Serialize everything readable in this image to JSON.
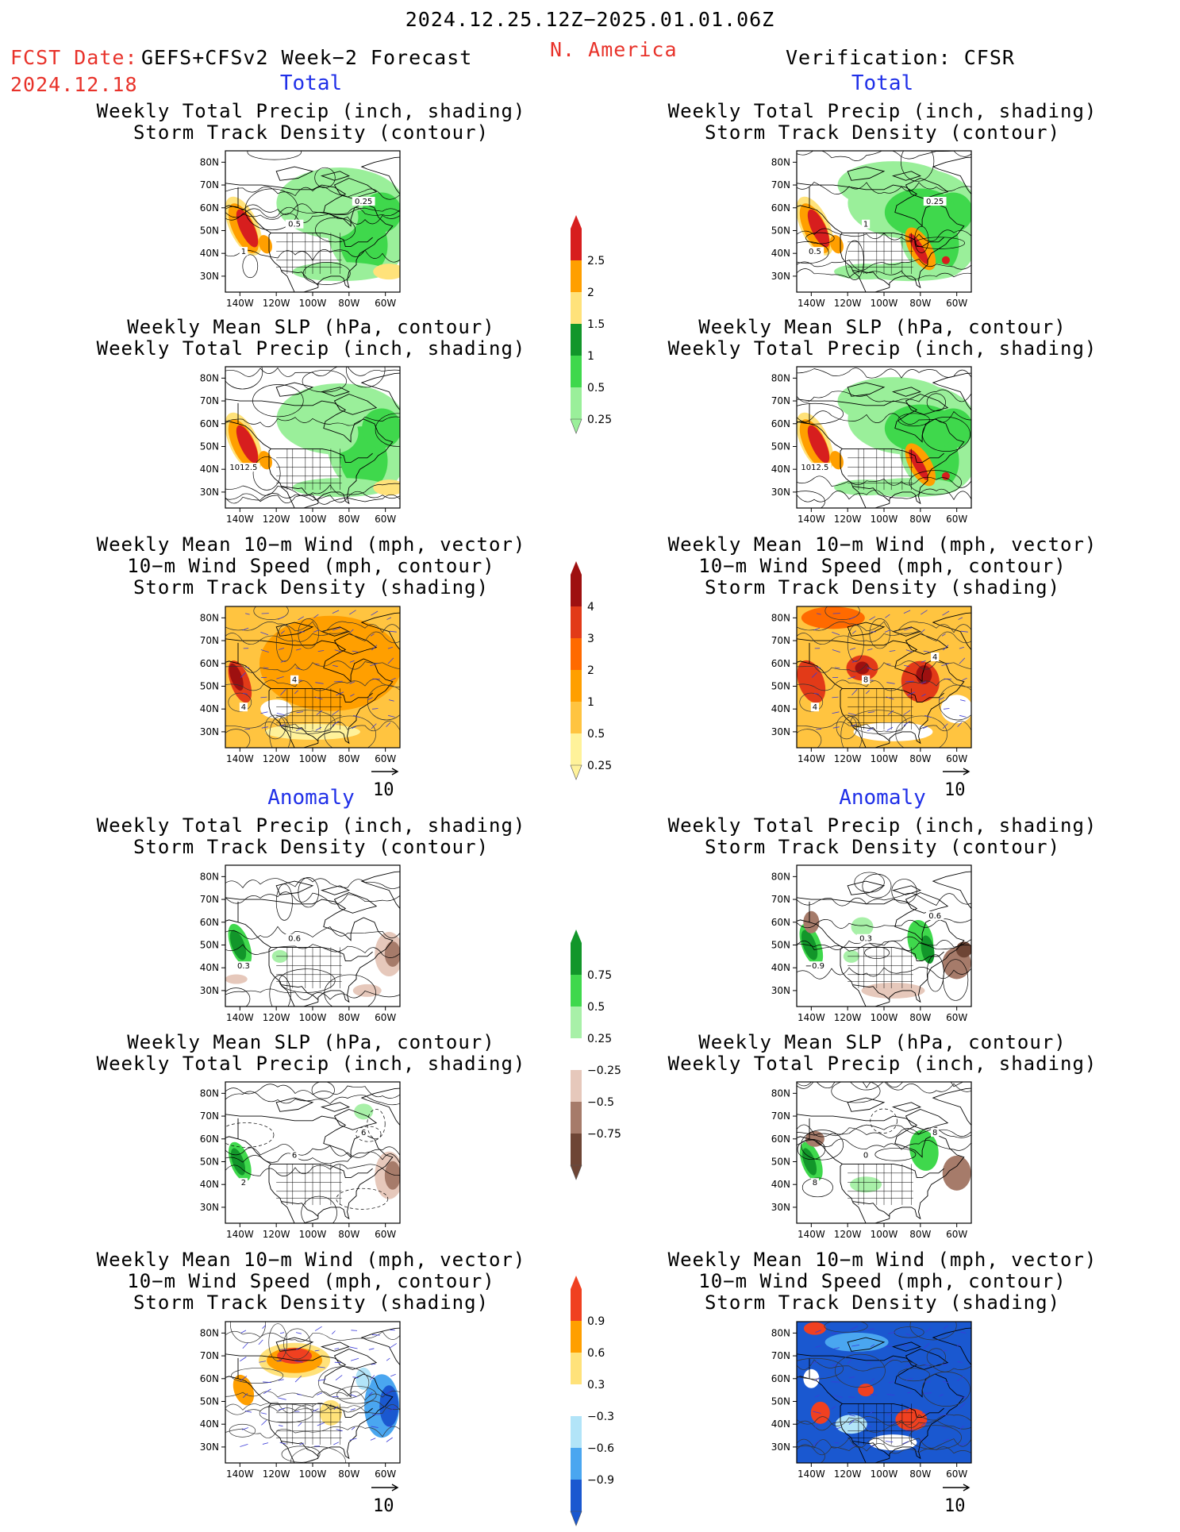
{
  "header": {
    "period": "2024.12.25.12Z−2025.01.01.06Z",
    "region": "N. America",
    "fcst_date_label": "FCST Date:",
    "forecast_name": "GEFS+CFSv2 Week−2 Forecast",
    "fcst_date": "2024.12.18",
    "verification": "Verification: CFSR"
  },
  "sections": {
    "total": "Total",
    "anomaly": "Anomaly"
  },
  "titles": {
    "precip_storm": [
      "Weekly Total Precip (inch, shading)",
      "Storm Track Density (contour)"
    ],
    "slp_precip": [
      "Weekly Mean SLP (hPa, contour)",
      "Weekly Total Precip (inch, shading)"
    ],
    "wind_storm": [
      "Weekly Mean 10−m Wind (mph, vector)",
      "10−m Wind Speed (mph, contour)",
      "Storm Track Density (shading)"
    ]
  },
  "axes": {
    "lat_labels": [
      "80N",
      "70N",
      "60N",
      "50N",
      "40N",
      "30N"
    ],
    "lon_labels": [
      "140W",
      "120W",
      "100W",
      "80W",
      "60W"
    ]
  },
  "vector_reference": "10",
  "colorbars": {
    "total_precip": {
      "labels": [
        "2.5",
        "2",
        "1.5",
        "1",
        "0.5",
        "0.25"
      ],
      "colors": [
        "#d71e1e",
        "#ff9f00",
        "#ffe27a",
        "#12962a",
        "#3fd84c",
        "#9aef9a"
      ]
    },
    "total_storm": {
      "labels": [
        "4",
        "3",
        "2",
        "1",
        "0.5",
        "0.25"
      ],
      "colors": [
        "#9e1010",
        "#e23a18",
        "#ff6a00",
        "#ff9f00",
        "#ffc440",
        "#fff29a"
      ]
    },
    "anom_precip": {
      "labels": [
        "0.75",
        "0.5",
        "0.25",
        "−0.25",
        "−0.5",
        "−0.75"
      ],
      "colors": [
        "#12962a",
        "#3fd84c",
        "#a8f0a8",
        "#ffffff",
        "#e6c8bb",
        "#a67b6a",
        "#6e4535"
      ]
    },
    "anom_storm": {
      "labels": [
        "0.9",
        "0.6",
        "0.3",
        "−0.3",
        "−0.6",
        "−0.9"
      ],
      "colors": [
        "#f04020",
        "#ff9f00",
        "#ffe27a",
        "#ffffff",
        "#b2e4f8",
        "#4aa6f0",
        "#1a58d0"
      ]
    }
  },
  "panels": {
    "fcst_total_precip": {
      "labels": [
        "1",
        "0.5",
        "0.25"
      ]
    },
    "verif_total_precip": {
      "labels": [
        "0.5",
        "1",
        "0.25"
      ]
    },
    "fcst_total_slp": {
      "labels": [
        "1012.5"
      ]
    },
    "verif_total_slp": {
      "labels": [
        "1012.5"
      ]
    },
    "fcst_total_wind": {
      "labels": [
        "4",
        "4"
      ]
    },
    "verif_total_wind": {
      "labels": [
        "4",
        "8",
        "4"
      ]
    },
    "fcst_anom_precip": {
      "labels": [
        "0.3",
        "0.6"
      ]
    },
    "verif_anom_precip": {
      "labels": [
        "−0.9",
        "0.3",
        "0.6"
      ]
    },
    "fcst_anom_slp": {
      "labels": [
        "2",
        "6",
        "6"
      ]
    },
    "verif_anom_slp": {
      "labels": [
        "8",
        "0",
        "8"
      ]
    },
    "fcst_anom_wind": {
      "labels": []
    },
    "verif_anom_wind": {
      "labels": []
    }
  },
  "colors": {
    "header_red": "#e8322a",
    "section_blue": "#2030e8"
  }
}
